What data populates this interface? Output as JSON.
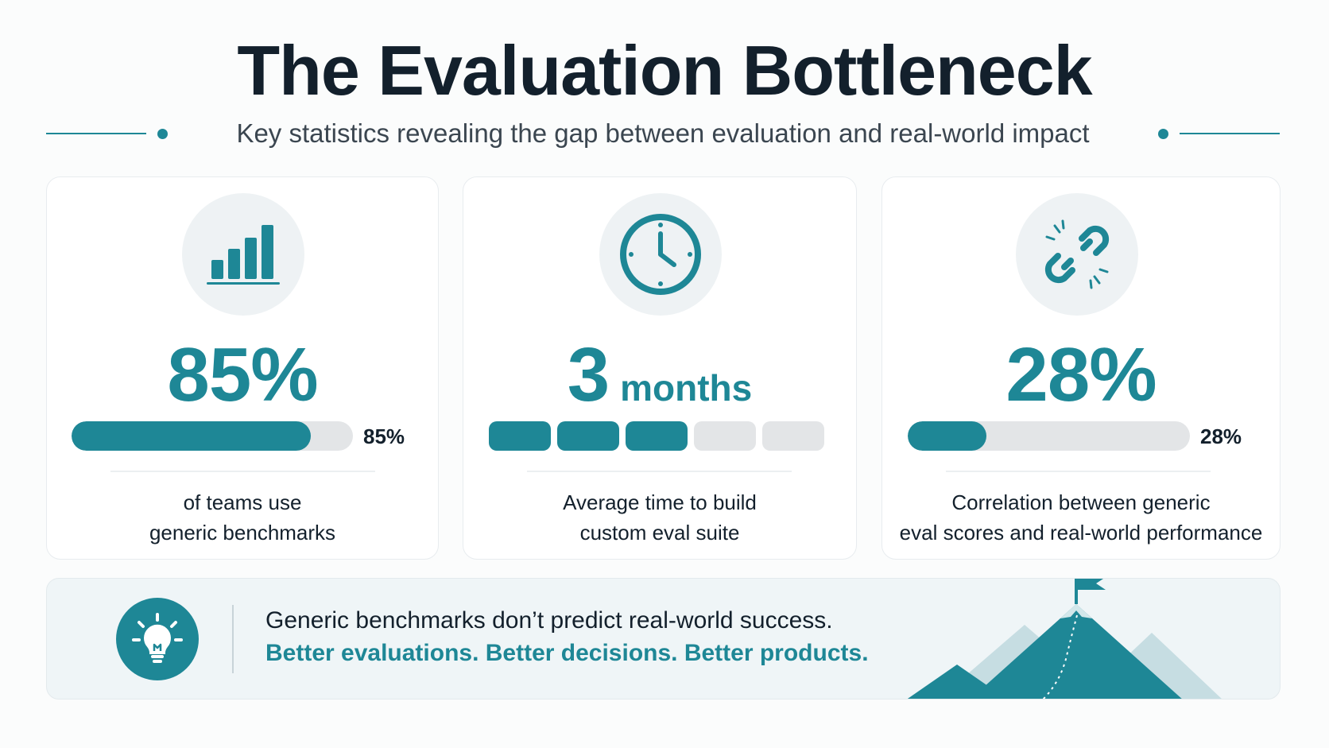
{
  "header": {
    "title": "The Evaluation Bottleneck",
    "subtitle": "Key statistics revealing the gap between evaluation and real-world impact"
  },
  "cards": [
    {
      "icon": "bar-chart-icon",
      "value": "85%",
      "bar_label": "85%",
      "progress": 0.85,
      "description_line1": "of teams use",
      "description_line2": "generic benchmarks"
    },
    {
      "icon": "clock-icon",
      "value": "3",
      "unit": "months",
      "segments_filled": 3,
      "segments_total": 5,
      "description_line1": "Average time to build",
      "description_line2": "custom eval suite"
    },
    {
      "icon": "broken-link-icon",
      "value": "28%",
      "bar_label": "28%",
      "progress": 0.28,
      "description_line1": "Correlation between generic",
      "description_line2": "eval scores and real-world performance"
    }
  ],
  "banner": {
    "icon": "lightbulb-icon",
    "line1": "Generic benchmarks don’t predict real-world success.",
    "line2": "Better evaluations. Better decisions. Better products.",
    "illustration": "mountain-flag-icon"
  },
  "colors": {
    "accent": "#1e8796",
    "text": "#13202c",
    "track": "#e3e5e7",
    "banner_bg": "#eff5f7"
  }
}
